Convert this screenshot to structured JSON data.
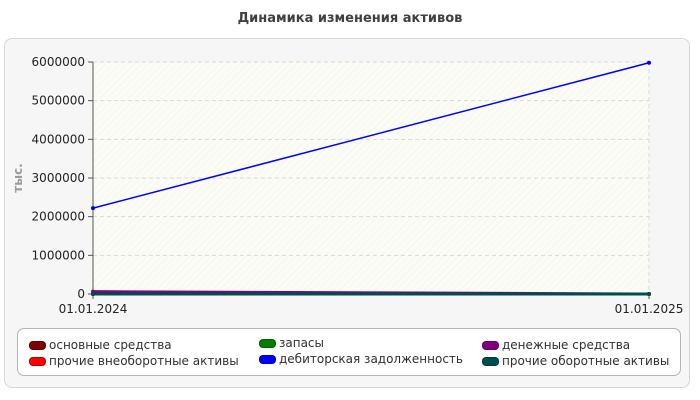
{
  "page": {
    "title": "Динамика изменения активов"
  },
  "chart_data": {
    "type": "line",
    "title": "Динамика изменения активов",
    "xlabel": "",
    "ylabel": "тыс.",
    "x": [
      "01.01.2024",
      "01.01.2025"
    ],
    "ylim": [
      0,
      6000000
    ],
    "yticks": [
      "0",
      "1000000",
      "2000000",
      "3000000",
      "4000000",
      "5000000",
      "6000000"
    ],
    "grid": true,
    "legend_position": "bottom",
    "series": [
      {
        "name": "основные средства",
        "values": [
          0,
          0
        ],
        "color": "#800000"
      },
      {
        "name": "прочие внеоборотные активы",
        "values": [
          0,
          0
        ],
        "color": "#ff0000"
      },
      {
        "name": "запасы",
        "values": [
          0,
          0
        ],
        "color": "#008000"
      },
      {
        "name": "дебиторская задолженность",
        "values": [
          2220000,
          5980000
        ],
        "color": "#0000ff"
      },
      {
        "name": "денежные средства",
        "values": [
          60000,
          0
        ],
        "color": "#800080"
      },
      {
        "name": "прочие оборотные активы",
        "values": [
          0,
          0
        ],
        "color": "#004d4d"
      }
    ]
  }
}
